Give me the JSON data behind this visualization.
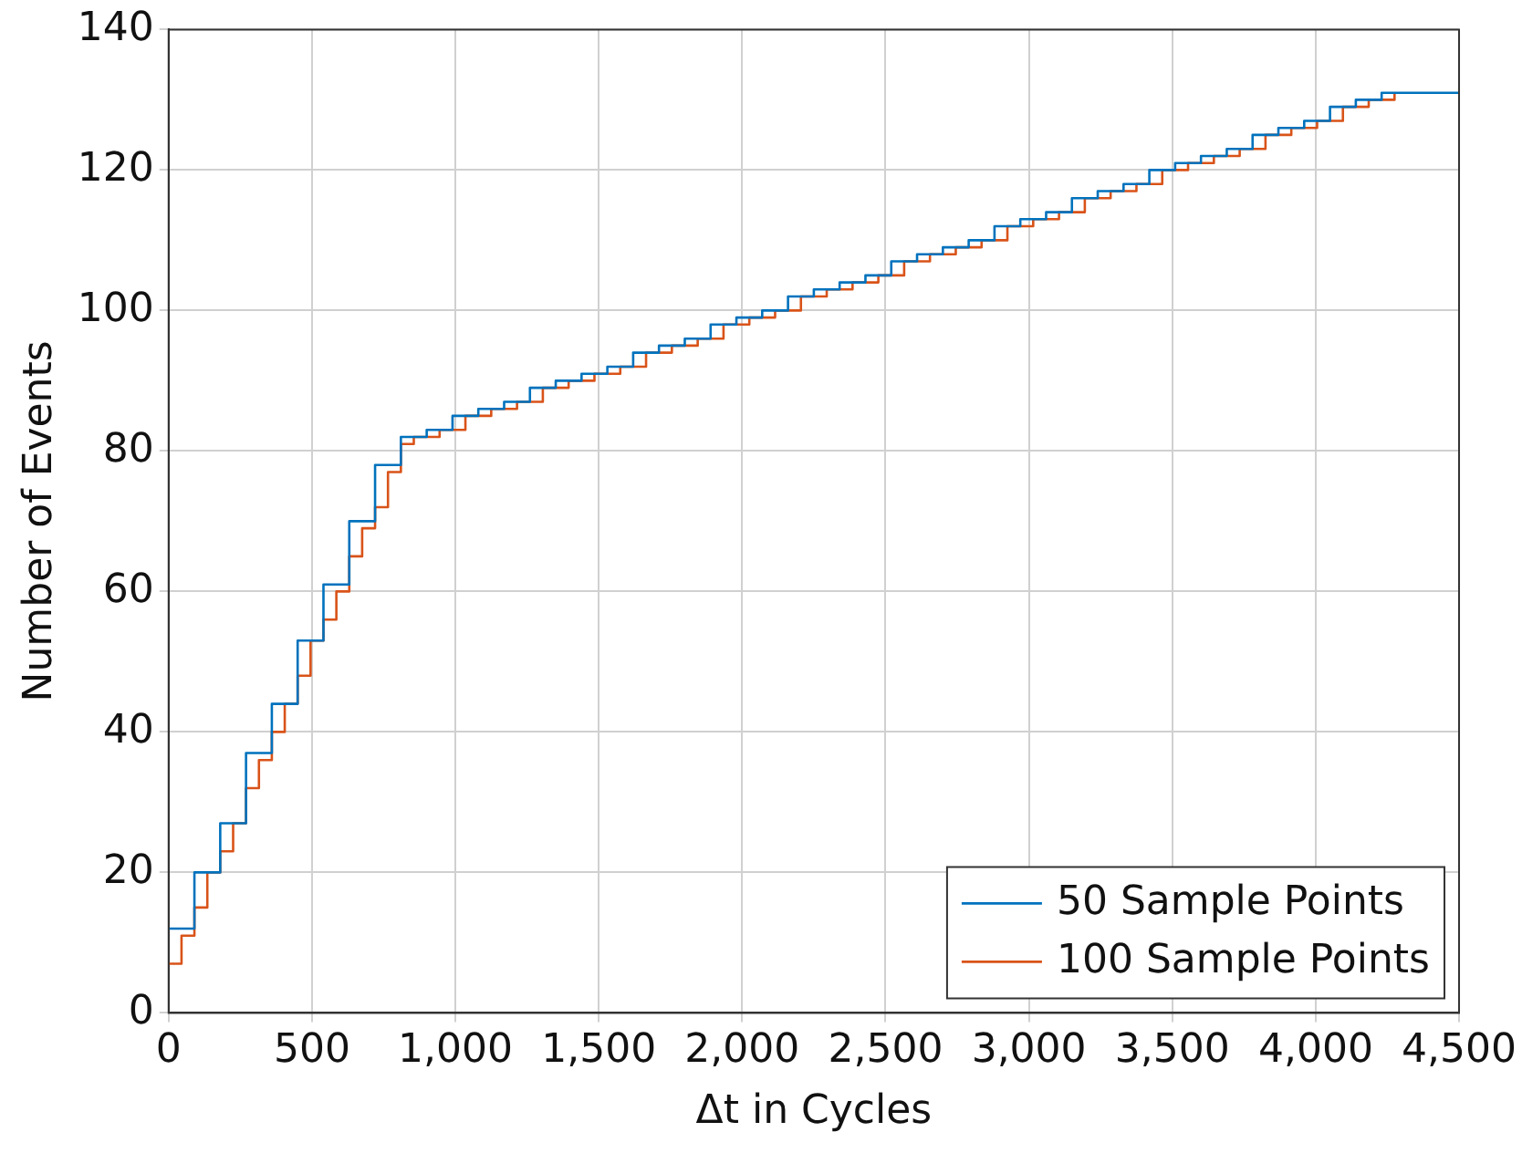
{
  "chart_data": {
    "type": "step",
    "xlabel": "Δt in Cycles",
    "ylabel": "Number of Events",
    "xlim": [
      0,
      4500
    ],
    "ylim": [
      0,
      140
    ],
    "xticks": [
      0,
      500,
      {
        "value": 1000,
        "label": "1,000"
      },
      {
        "value": 1500,
        "label": "1,500"
      },
      {
        "value": 2000,
        "label": "2,000"
      },
      {
        "value": 2500,
        "label": "2,500"
      },
      {
        "value": 3000,
        "label": "3,000"
      },
      {
        "value": 3500,
        "label": "3,500"
      },
      {
        "value": 4000,
        "label": "4,000"
      },
      {
        "value": 4500,
        "label": "4,500"
      }
    ],
    "yticks": [
      0,
      20,
      40,
      60,
      80,
      100,
      120,
      140
    ],
    "grid": true,
    "legend": "bottom right",
    "marker": "none",
    "line_style": "solid",
    "series": [
      {
        "name": "50 Sample Points",
        "color": "#0072bd",
        "x": [
          0,
          90,
          180,
          270,
          360,
          450,
          540,
          630,
          720,
          810,
          900,
          990,
          1080,
          1170,
          1260,
          1350,
          1440,
          1530,
          1620,
          1710,
          1800,
          1890,
          1980,
          2070,
          2160,
          2250,
          2340,
          2430,
          2520,
          2610,
          2700,
          2790,
          2880,
          2970,
          3060,
          3150,
          3240,
          3330,
          3420,
          3510,
          3600,
          3690,
          3780,
          3870,
          3960,
          4050,
          4140,
          4230,
          4320,
          4410,
          4500
        ],
        "values": [
          12,
          20,
          27,
          37,
          44,
          53,
          61,
          70,
          78,
          82,
          83,
          85,
          86,
          87,
          89,
          90,
          91,
          92,
          94,
          95,
          96,
          98,
          99,
          100,
          102,
          103,
          104,
          105,
          107,
          108,
          109,
          110,
          112,
          113,
          114,
          116,
          117,
          118,
          120,
          121,
          122,
          123,
          125,
          126,
          127,
          129,
          130,
          131,
          131,
          131,
          131
        ]
      },
      {
        "name": "100 Sample Points",
        "color": "#d95319",
        "x": [
          0,
          45,
          90,
          135,
          180,
          225,
          270,
          315,
          360,
          405,
          450,
          495,
          540,
          585,
          630,
          675,
          720,
          765,
          810,
          855,
          900,
          945,
          990,
          1035,
          1080,
          1125,
          1170,
          1215,
          1260,
          1305,
          1350,
          1395,
          1440,
          1485,
          1530,
          1575,
          1620,
          1665,
          1710,
          1755,
          1800,
          1845,
          1890,
          1935,
          1980,
          2025,
          2070,
          2115,
          2160,
          2205,
          2250,
          2295,
          2340,
          2385,
          2430,
          2475,
          2520,
          2565,
          2610,
          2655,
          2700,
          2745,
          2790,
          2835,
          2880,
          2925,
          2970,
          3015,
          3060,
          3105,
          3150,
          3195,
          3240,
          3285,
          3330,
          3375,
          3420,
          3465,
          3510,
          3555,
          3600,
          3645,
          3690,
          3735,
          3780,
          3825,
          3870,
          3915,
          3960,
          4005,
          4050,
          4095,
          4140,
          4185,
          4230,
          4275
        ],
        "values": [
          7,
          11,
          15,
          20,
          23,
          27,
          32,
          36,
          40,
          44,
          48,
          53,
          56,
          60,
          65,
          69,
          72,
          77,
          81,
          82,
          82,
          83,
          83,
          85,
          85,
          86,
          86,
          87,
          87,
          89,
          89,
          90,
          90,
          91,
          91,
          92,
          92,
          94,
          94,
          95,
          95,
          96,
          96,
          98,
          98,
          99,
          99,
          100,
          100,
          102,
          102,
          103,
          103,
          104,
          104,
          105,
          105,
          107,
          107,
          108,
          108,
          109,
          109,
          110,
          110,
          112,
          112,
          113,
          113,
          114,
          114,
          116,
          116,
          117,
          117,
          118,
          118,
          120,
          120,
          121,
          121,
          122,
          122,
          123,
          123,
          125,
          125,
          126,
          126,
          127,
          127,
          129,
          129,
          130,
          130,
          131
        ]
      }
    ]
  }
}
